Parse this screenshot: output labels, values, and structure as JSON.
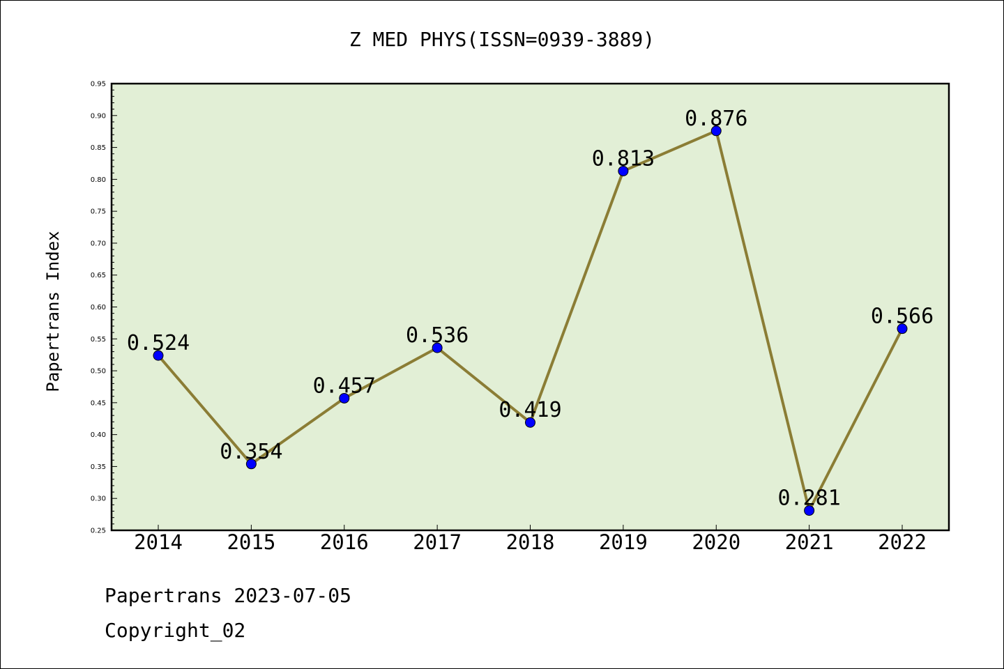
{
  "chart_data": {
    "type": "line",
    "title": "Z MED PHYS(ISSN=0939-3889)",
    "ylabel": "Papertrans Index",
    "xlabel": "",
    "categories": [
      "2014",
      "2015",
      "2016",
      "2017",
      "2018",
      "2019",
      "2020",
      "2021",
      "2022"
    ],
    "values": [
      0.524,
      0.354,
      0.457,
      0.536,
      0.419,
      0.813,
      0.876,
      0.281,
      0.566
    ],
    "data_labels": [
      "0.524",
      "0.354",
      "0.457",
      "0.536",
      "0.419",
      "0.813",
      "0.876",
      "0.281",
      "0.566"
    ],
    "ylim": [
      0.25,
      0.95
    ],
    "yticks": [
      "0.25",
      "0.30",
      "0.35",
      "0.40",
      "0.45",
      "0.50",
      "0.55",
      "0.60",
      "0.65",
      "0.70",
      "0.75",
      "0.80",
      "0.85",
      "0.90",
      "0.95"
    ],
    "grid": false,
    "colors": {
      "plot_background": "#e2efd6",
      "line": "#8b7d35",
      "marker": "#0000ff"
    }
  },
  "footer": {
    "date_line": "Papertrans 2023-07-05",
    "copyright": "Copyright_02"
  }
}
